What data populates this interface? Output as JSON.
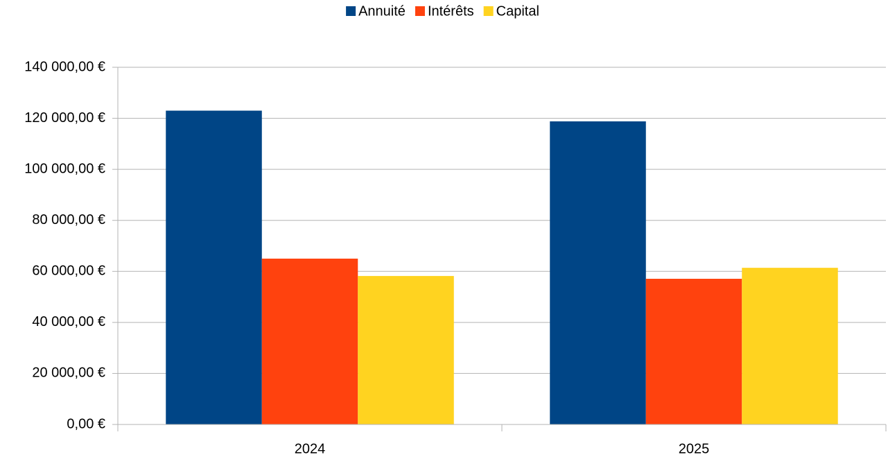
{
  "chart_data": {
    "type": "bar",
    "categories": [
      "2024",
      "2025"
    ],
    "series": [
      {
        "name": "Annuité",
        "color": "#004586",
        "values": [
          123000,
          118800
        ]
      },
      {
        "name": "Intérêts",
        "color": "#ff420e",
        "values": [
          65000,
          57100
        ]
      },
      {
        "name": "Capital",
        "color": "#ffd320",
        "values": [
          58200,
          61400
        ]
      }
    ],
    "ylim": [
      0,
      140000
    ],
    "yticks": [
      {
        "value": 0,
        "label": "0,00 €"
      },
      {
        "value": 20000,
        "label": "20 000,00 €"
      },
      {
        "value": 40000,
        "label": "40 000,00 €"
      },
      {
        "value": 60000,
        "label": "60 000,00 €"
      },
      {
        "value": 80000,
        "label": "80 000,00 €"
      },
      {
        "value": 100000,
        "label": "100 000,00 €"
      },
      {
        "value": 120000,
        "label": "120 000,00 €"
      },
      {
        "value": 140000,
        "label": "140 000,00 €"
      }
    ],
    "grid": true,
    "legend": "top"
  }
}
